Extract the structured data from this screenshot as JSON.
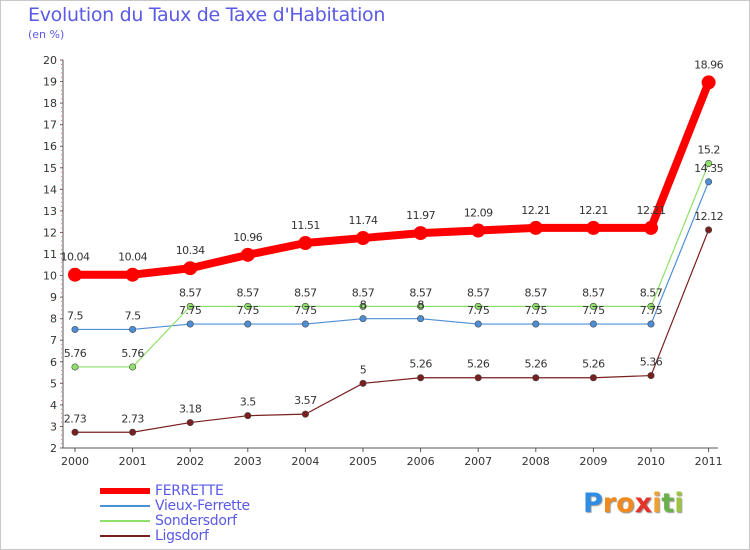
{
  "title": "Evolution du Taux de Taxe d'Habitation",
  "unit_label": "(en %)",
  "logo": {
    "letters": [
      "P",
      "r",
      "o",
      "x",
      "i",
      "t",
      "i"
    ],
    "colors": [
      "#2f8de4",
      "#f08a1c",
      "#f08a1c",
      "#e5342c",
      "#f0a02c",
      "#6ab04c",
      "#9bc53d"
    ]
  },
  "chart_data": {
    "type": "line",
    "title": "Evolution du Taux de Taxe d'Habitation",
    "ylabel": "(en %)",
    "xlabel": "",
    "categories": [
      "2000",
      "2001",
      "2002",
      "2003",
      "2004",
      "2005",
      "2006",
      "2007",
      "2008",
      "2009",
      "2010",
      "2011"
    ],
    "ylim": [
      2,
      20
    ],
    "yticks": [
      2,
      3,
      4,
      5,
      6,
      7,
      8,
      9,
      10,
      11,
      12,
      13,
      14,
      15,
      16,
      17,
      18,
      19,
      20
    ],
    "grid": false,
    "legend_position": "bottom-left",
    "series": [
      {
        "name": "FERRETTE",
        "color": "#ff0000",
        "values": [
          10.04,
          10.04,
          10.34,
          10.96,
          11.51,
          11.74,
          11.97,
          12.09,
          12.21,
          12.21,
          12.21,
          18.96
        ],
        "labels": [
          "10.04",
          "10.04",
          "10.34",
          "10.96",
          "11.51",
          "11.74",
          "11.97",
          "12.09",
          "12.21",
          "12.21",
          "12.21",
          "18.96"
        ]
      },
      {
        "name": "Vieux-Ferrette",
        "color": "#4d8fd6",
        "values": [
          7.5,
          7.5,
          7.75,
          7.75,
          7.75,
          8,
          8,
          7.75,
          7.75,
          7.75,
          7.75,
          14.35
        ],
        "labels": [
          "7.5",
          "7.5",
          "7.75",
          "7.75",
          "7.75",
          "8",
          "8",
          "7.75",
          "7.75",
          "7.75",
          "7.75",
          "14.35"
        ]
      },
      {
        "name": "Sondersdorf",
        "color": "#8fe06a",
        "values": [
          5.76,
          5.76,
          8.57,
          8.57,
          8.57,
          8.57,
          8.57,
          8.57,
          8.57,
          8.57,
          8.57,
          15.2
        ],
        "labels": [
          "5.76",
          "5.76",
          "8.57",
          "8.57",
          "8.57",
          "8.57",
          "8.57",
          "8.57",
          "8.57",
          "8.57",
          "8.57",
          "15.2"
        ]
      },
      {
        "name": "Ligsdorf",
        "color": "#7a1f1f",
        "values": [
          2.73,
          2.73,
          3.18,
          3.5,
          3.57,
          5,
          5.26,
          5.26,
          5.26,
          5.26,
          5.36,
          12.12
        ],
        "labels": [
          "2.73",
          "2.73",
          "3.18",
          "3.5",
          "3.57",
          "5",
          "5.26",
          "5.26",
          "5.26",
          "5.26",
          "5.36",
          "12.12"
        ]
      }
    ]
  }
}
